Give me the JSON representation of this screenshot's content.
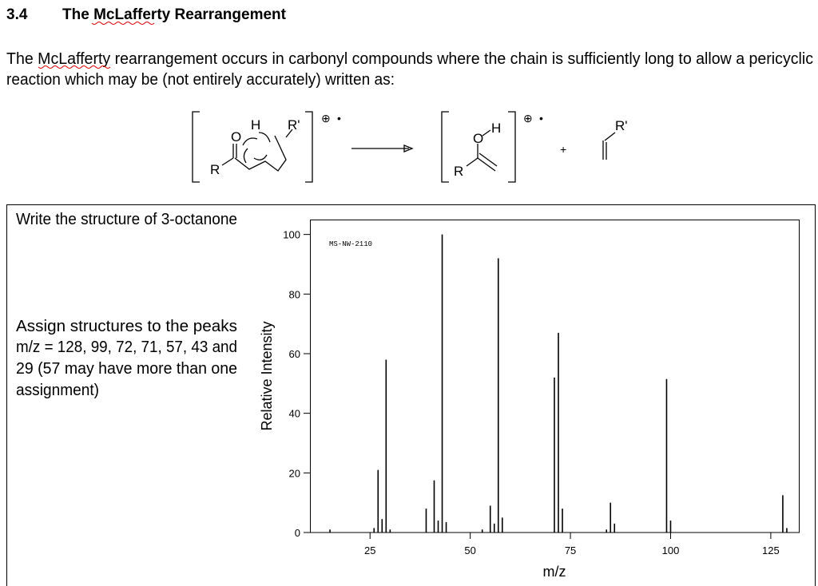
{
  "header": {
    "number": "3.4",
    "title": "The McLafferty Rearrangement"
  },
  "paragraph": {
    "lines": [
      "The McLafferty rearrangement occurs in carbonyl compounds where the chain is sufficiently long to allow a pericyclic",
      "reaction which may be (not entirely accurately) written as:"
    ]
  },
  "reaction": {
    "reactant_labels": [
      "O",
      "H",
      "R'",
      "R"
    ],
    "product_labels": [
      "O",
      "H",
      "R"
    ],
    "charge_labels": [
      "⊕",
      "•",
      "⊕",
      "•"
    ],
    "plus": "+",
    "alkene_label": "R'"
  },
  "question": "Write the structure of 3-octanone",
  "task": {
    "lines": [
      "Assign structures to the peaks",
      "m/z = 128, 99, 72, 71, 57, 43 and",
      "29 (57 may have more than one",
      "assignment)"
    ]
  },
  "chart_data": {
    "type": "bar",
    "annotation": "MS-NW-2110",
    "ylabel": "Relative Intensity",
    "xlabel": "m/z",
    "color": "#000000",
    "x": [
      15,
      26,
      27,
      28,
      29,
      30,
      39,
      41,
      42,
      43,
      44,
      53,
      55,
      56,
      57,
      58,
      71,
      72,
      73,
      84,
      85,
      86,
      99,
      100,
      128,
      129
    ],
    "values": [
      1,
      1.5,
      21,
      4.5,
      58,
      1,
      8,
      17.5,
      4,
      100,
      3.5,
      1,
      9,
      3,
      92,
      5,
      52,
      67,
      8,
      1,
      10,
      3,
      51.5,
      4,
      12.5,
      1.5
    ],
    "xlim": [
      10,
      132
    ],
    "ylim": [
      0,
      105
    ],
    "xticks": [
      25,
      50,
      75,
      100,
      125
    ],
    "yticks": [
      0,
      20,
      40,
      60,
      80,
      100
    ]
  }
}
